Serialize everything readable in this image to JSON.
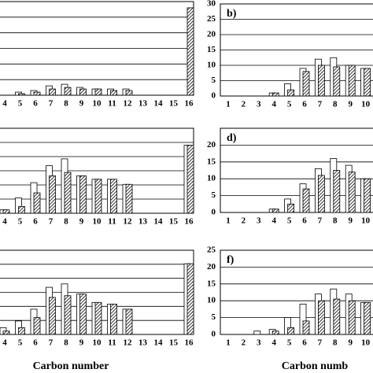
{
  "chart_data": [
    {
      "type": "bar",
      "categories": [
        "4",
        "5",
        "6",
        "7",
        "8",
        "9",
        "10",
        "11",
        "12",
        "13",
        "14",
        "15",
        "16"
      ],
      "ylim": [
        0,
        30
      ],
      "series": [
        {
          "color": "#ffffff",
          "values": [
            0,
            1,
            1.5,
            3,
            3.5,
            2.5,
            2,
            2,
            2,
            0,
            0,
            0,
            0
          ]
        },
        {
          "color": "#000000",
          "values": [
            0,
            0.5,
            1,
            2,
            2.5,
            2,
            2,
            1.5,
            1.5,
            0,
            0,
            0,
            28
          ]
        }
      ]
    },
    {
      "type": "bar",
      "title": "b)",
      "categories": [
        "1",
        "2",
        "3",
        "4",
        "5",
        "6",
        "7",
        "8",
        "9",
        "10"
      ],
      "ylim": [
        0,
        30
      ],
      "yticks": [
        0,
        5,
        10,
        15,
        20,
        25,
        30
      ],
      "series": [
        {
          "color": "#ffffff",
          "values": [
            0,
            0,
            0,
            1,
            4,
            9,
            12,
            12.5,
            10,
            9
          ]
        },
        {
          "color": "#000000",
          "values": [
            0,
            0,
            0,
            1,
            2,
            8,
            10,
            9.5,
            10,
            9
          ]
        }
      ]
    },
    {
      "type": "bar",
      "categories": [
        "4",
        "5",
        "6",
        "7",
        "8",
        "9",
        "10",
        "11",
        "12",
        "13",
        "14",
        "15",
        "16"
      ],
      "ylim": [
        0,
        25
      ],
      "series": [
        {
          "color": "#ffffff",
          "values": [
            1,
            4.5,
            9,
            14,
            16,
            11,
            10,
            10,
            8.5,
            0,
            0,
            0,
            20
          ]
        },
        {
          "color": "#000000",
          "values": [
            1,
            2,
            6,
            11,
            12,
            11,
            10,
            10,
            8.5,
            0,
            0,
            0,
            20
          ]
        }
      ]
    },
    {
      "type": "bar",
      "title": "d)",
      "categories": [
        "1",
        "2",
        "3",
        "4",
        "5",
        "6",
        "7",
        "8",
        "9",
        "10"
      ],
      "ylim": [
        0,
        25
      ],
      "yticks": [
        0,
        5,
        10,
        15,
        20
      ],
      "series": [
        {
          "color": "#ffffff",
          "values": [
            0,
            0,
            0,
            1,
            4,
            8.5,
            13,
            16,
            14,
            10
          ]
        },
        {
          "color": "#000000",
          "values": [
            0,
            0,
            0,
            1,
            2.5,
            7,
            11,
            12.5,
            12,
            10
          ]
        }
      ]
    },
    {
      "type": "bar",
      "categories": [
        "4",
        "5",
        "6",
        "7",
        "8",
        "9",
        "10",
        "11",
        "12",
        "13",
        "14",
        "15",
        "16"
      ],
      "ylim": [
        0,
        25
      ],
      "xlabel": "Carbon number",
      "series": [
        {
          "color": "#ffffff",
          "values": [
            2,
            4,
            7.5,
            14,
            15,
            12,
            9.5,
            9,
            7.5,
            0,
            0,
            0,
            21
          ]
        },
        {
          "color": "#000000",
          "values": [
            1,
            2,
            5,
            11,
            11.5,
            12,
            9.5,
            9,
            7.5,
            0,
            0,
            0,
            21
          ]
        }
      ]
    },
    {
      "type": "bar",
      "title": "f)",
      "categories": [
        "1",
        "2",
        "3",
        "4",
        "5",
        "6",
        "7",
        "8",
        "9",
        "10"
      ],
      "ylim": [
        0,
        25
      ],
      "yticks": [
        0,
        5,
        10,
        15,
        20,
        25
      ],
      "xlabel": "Carbon numb",
      "series": [
        {
          "color": "#ffffff",
          "values": [
            0,
            0,
            1,
            1.5,
            5,
            9,
            12,
            13.5,
            12,
            9.5
          ]
        },
        {
          "color": "#000000",
          "values": [
            0,
            0,
            0,
            1,
            2,
            4,
            10,
            10.5,
            10,
            9.5
          ]
        }
      ]
    }
  ]
}
